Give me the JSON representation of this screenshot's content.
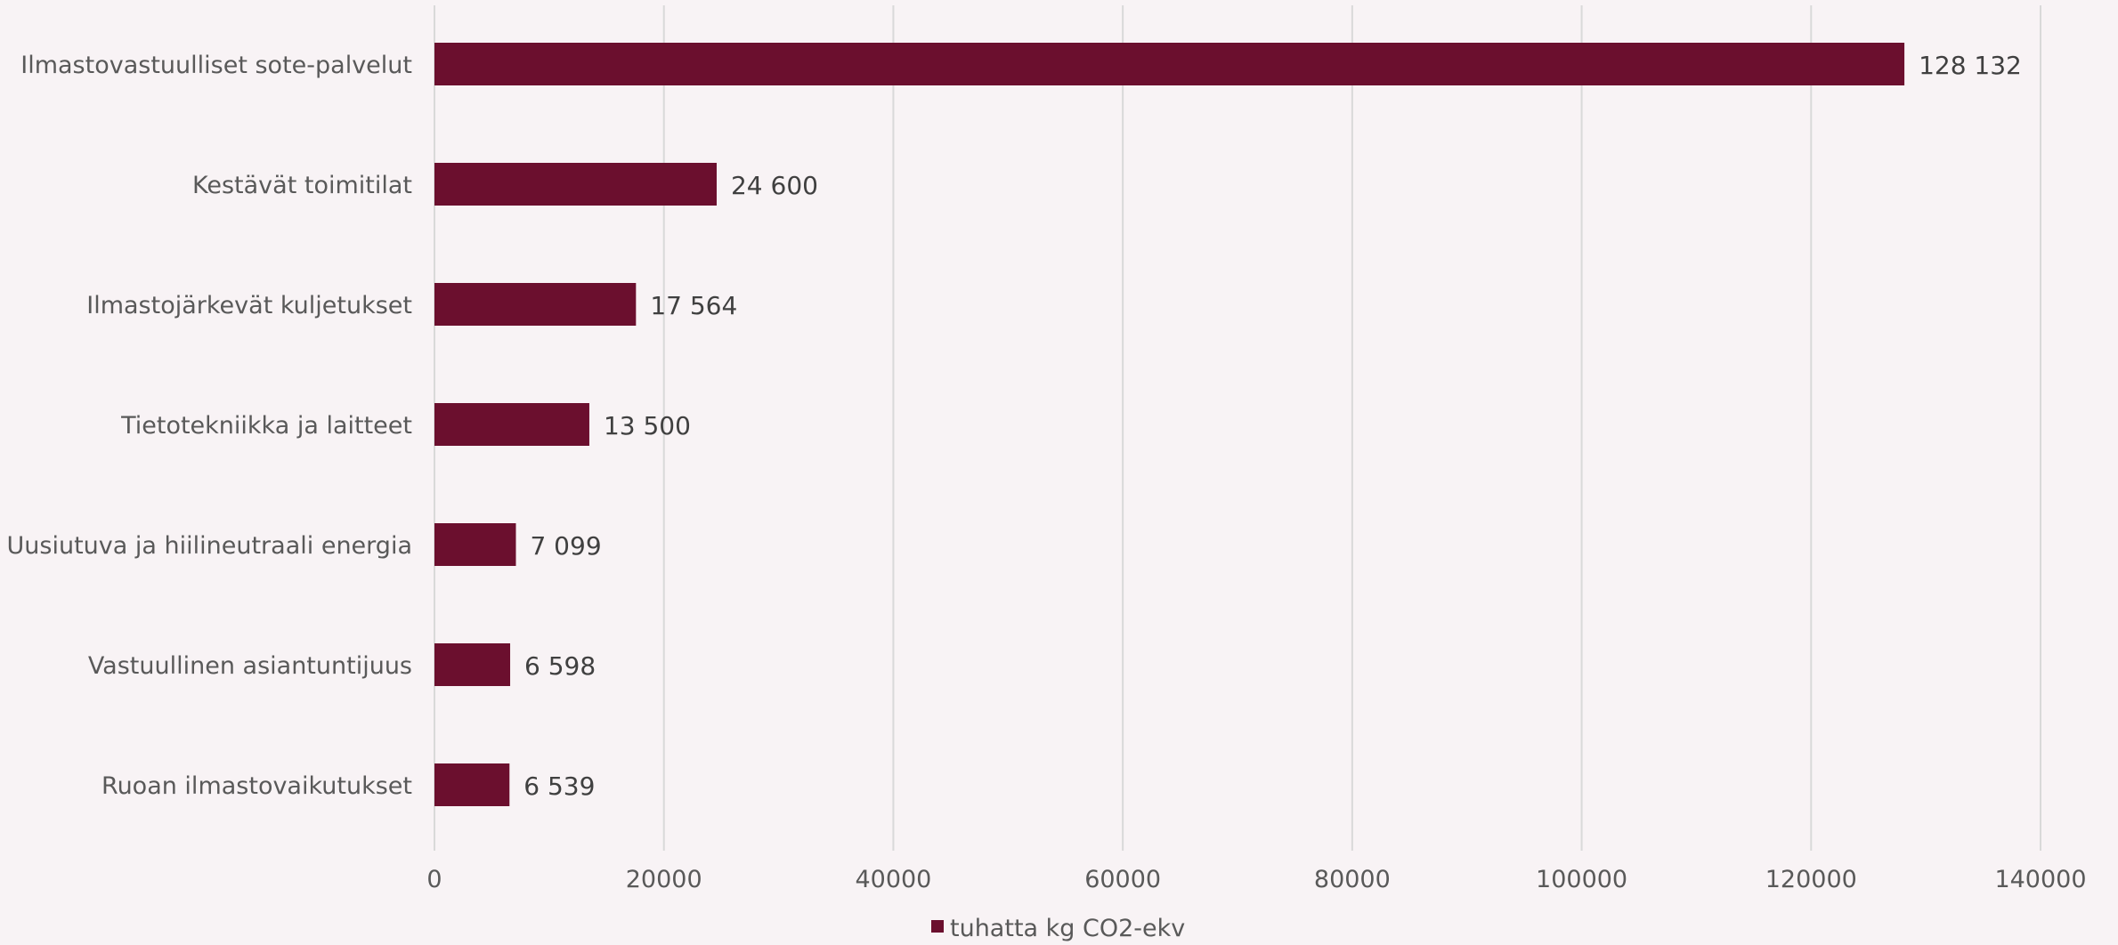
{
  "chart_data": {
    "type": "bar",
    "orientation": "horizontal",
    "title": "",
    "xlabel": "",
    "ylabel": "",
    "categories": [
      "Ilmastovastuulliset sote-palvelut",
      "Kestävät toimitilat",
      "Ilmastojärkevät kuljetukset",
      "Tietotekniikka ja laitteet",
      "Uusiutuva ja hiilineutraali energia",
      "Vastuullinen asiantuntijuus",
      "Ruoan ilmastovaikutukset"
    ],
    "series": [
      {
        "name": "tuhatta kg CO2-ekv",
        "values": [
          128132,
          24600,
          17564,
          13500,
          7099,
          6598,
          6539
        ],
        "data_labels": [
          "128 132",
          "24 600",
          "17 564",
          "13 500",
          "7 099",
          "6 598",
          "6 539"
        ],
        "color": "#6b0f2e"
      }
    ],
    "xlim": [
      0,
      140000
    ],
    "xticks": [
      0,
      20000,
      40000,
      60000,
      80000,
      100000,
      120000,
      140000
    ],
    "xtick_labels": [
      "0",
      "20000",
      "40000",
      "60000",
      "80000",
      "100000",
      "120000",
      "140000"
    ],
    "grid": "vertical",
    "legend": "bottom-center"
  },
  "colors": {
    "background": "#f8f3f5",
    "bar": "#6b0f2e",
    "grid": "#d9d9d9",
    "text": "#595959"
  }
}
